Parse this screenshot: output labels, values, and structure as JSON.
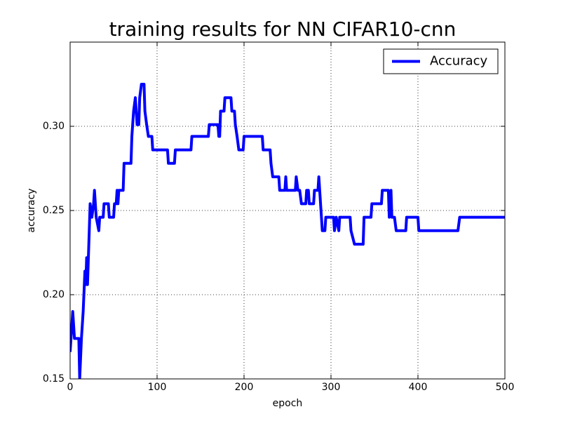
{
  "chart_data": {
    "type": "line",
    "title": "training results for NN CIFAR10-cnn",
    "xlabel": "epoch",
    "ylabel": "accuracy",
    "xlim": [
      0,
      500
    ],
    "ylim": [
      0.15,
      0.35
    ],
    "xticks": [
      0,
      100,
      200,
      300,
      400,
      500
    ],
    "yticks": [
      {
        "value": 0.15,
        "label": "0.15"
      },
      {
        "value": 0.2,
        "label": "0.20"
      },
      {
        "value": 0.25,
        "label": "0.25"
      },
      {
        "value": 0.3,
        "label": "0.30"
      }
    ],
    "grid": true,
    "legend": "upper right",
    "series": [
      {
        "name": "Accuracy",
        "color": "#0000ff",
        "x": [
          0,
          3,
          5,
          10,
          11,
          13,
          15,
          17,
          18,
          19,
          20,
          22,
          23,
          25,
          27,
          28,
          30,
          33,
          34,
          38,
          39,
          44,
          45,
          50,
          51,
          53,
          54,
          55,
          56,
          61,
          62,
          70,
          71,
          73,
          75,
          77,
          79,
          80,
          82,
          85,
          86,
          88,
          90,
          94,
          95,
          112,
          113,
          120,
          121,
          139,
          140,
          159,
          160,
          170,
          171,
          172,
          173,
          177,
          178,
          185,
          186,
          189,
          190,
          192,
          194,
          199,
          200,
          221,
          222,
          230,
          231,
          233,
          240,
          241,
          247,
          248,
          249,
          259,
          260,
          262,
          264,
          266,
          271,
          272,
          274,
          275,
          280,
          281,
          285,
          286,
          288,
          290,
          293,
          294,
          303,
          304,
          306,
          309,
          310,
          322,
          323,
          327,
          337,
          338,
          346,
          347,
          358,
          359,
          366,
          367,
          369,
          370,
          373,
          375,
          386,
          387,
          400,
          401,
          446,
          448,
          500
        ],
        "values": [
          0.166,
          0.19,
          0.174,
          0.174,
          0.15,
          0.174,
          0.19,
          0.214,
          0.206,
          0.222,
          0.206,
          0.238,
          0.254,
          0.246,
          0.254,
          0.262,
          0.246,
          0.238,
          0.246,
          0.246,
          0.254,
          0.254,
          0.246,
          0.246,
          0.254,
          0.254,
          0.262,
          0.254,
          0.262,
          0.262,
          0.278,
          0.278,
          0.294,
          0.309,
          0.317,
          0.301,
          0.301,
          0.317,
          0.325,
          0.325,
          0.309,
          0.301,
          0.294,
          0.294,
          0.286,
          0.286,
          0.278,
          0.278,
          0.286,
          0.286,
          0.294,
          0.294,
          0.301,
          0.301,
          0.294,
          0.294,
          0.309,
          0.309,
          0.317,
          0.317,
          0.309,
          0.309,
          0.301,
          0.294,
          0.286,
          0.286,
          0.294,
          0.294,
          0.286,
          0.286,
          0.278,
          0.27,
          0.27,
          0.262,
          0.262,
          0.27,
          0.262,
          0.262,
          0.27,
          0.262,
          0.262,
          0.254,
          0.254,
          0.262,
          0.262,
          0.254,
          0.254,
          0.262,
          0.262,
          0.27,
          0.254,
          0.238,
          0.238,
          0.246,
          0.246,
          0.238,
          0.246,
          0.238,
          0.246,
          0.246,
          0.238,
          0.23,
          0.23,
          0.246,
          0.246,
          0.254,
          0.254,
          0.262,
          0.262,
          0.246,
          0.262,
          0.246,
          0.246,
          0.238,
          0.238,
          0.246,
          0.246,
          0.238,
          0.238,
          0.246,
          0.246
        ]
      }
    ]
  }
}
